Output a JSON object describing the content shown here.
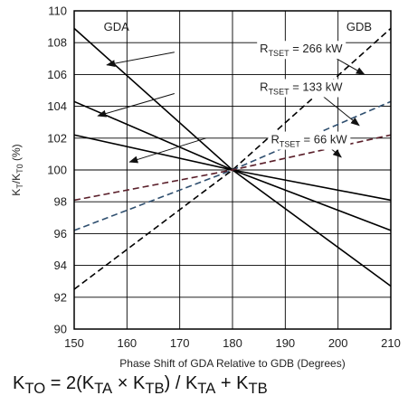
{
  "chart_data": {
    "type": "line",
    "xlabel": "Phase Shift of GDA Relative to GDB (Degrees)",
    "ylabel": "K_T/K_T0 (%)",
    "xlim": [
      150,
      210
    ],
    "ylim": [
      90,
      110
    ],
    "xticks": [
      150,
      160,
      170,
      180,
      190,
      200,
      210
    ],
    "yticks": [
      90,
      92,
      94,
      96,
      98,
      100,
      102,
      104,
      106,
      108,
      110
    ],
    "grid": true,
    "regions": [
      {
        "label": "GDA",
        "x": 158
      },
      {
        "label": "GDB",
        "x": 204
      }
    ],
    "series": [
      {
        "group": "GDA",
        "rtset": "266 kW",
        "style": "solid",
        "color": "#000000",
        "x": [
          150,
          180,
          210
        ],
        "y": [
          108.9,
          100,
          92.7
        ]
      },
      {
        "group": "GDA",
        "rtset": "133 kW",
        "style": "solid",
        "color": "#000000",
        "x": [
          150,
          180,
          210
        ],
        "y": [
          104.3,
          100,
          96.2
        ]
      },
      {
        "group": "GDA",
        "rtset": "66 kW",
        "style": "solid",
        "color": "#000000",
        "x": [
          150,
          180,
          210
        ],
        "y": [
          102.2,
          100,
          98.1
        ]
      },
      {
        "group": "GDB",
        "rtset": "266 kW",
        "style": "dashed",
        "color": "#000000",
        "x": [
          150,
          180,
          210
        ],
        "y": [
          92.5,
          100,
          108.9
        ]
      },
      {
        "group": "GDB",
        "rtset": "133 kW",
        "style": "dashed",
        "color": "#2f4f6f",
        "x": [
          150,
          180,
          210
        ],
        "y": [
          96.2,
          100,
          104.3
        ]
      },
      {
        "group": "GDB",
        "rtset": "66 kW",
        "style": "dashed",
        "color": "#5a1f2a",
        "x": [
          150,
          180,
          210
        ],
        "y": [
          98.1,
          100,
          102.2
        ]
      }
    ],
    "annotations": [
      {
        "main": "R",
        "sub": "TSET",
        "value": " = 266 kW",
        "label_at": [
          193,
          107.6
        ],
        "arrows": [
          {
            "from": [
              169,
              107.4
            ],
            "to": [
              156.2,
              106.6
            ]
          },
          {
            "from": [
              196.5,
              107.6
            ],
            "to": [
              205.0,
              106.0
            ]
          }
        ]
      },
      {
        "main": "R",
        "sub": "TSET",
        "value": " = 133 kW",
        "label_at": [
          193,
          105.2
        ],
        "arrows": [
          {
            "from": [
              169,
              104.8
            ],
            "to": [
              154.5,
              103.4
            ]
          },
          {
            "from": [
              196.5,
              104.8
            ],
            "to": [
              204.0,
              102.8
            ]
          }
        ]
      },
      {
        "main": "R",
        "sub": "TSET",
        "value": " = 66 kW",
        "label_at": [
          194.5,
          101.9
        ],
        "arrows": [
          {
            "from": [
              175,
              102.0
            ],
            "to": [
              160.5,
              100.5
            ]
          },
          {
            "from": [
              197,
              101.8
            ],
            "to": [
              200.6,
              100.8
            ]
          }
        ]
      }
    ]
  },
  "formula": {
    "k_to": "K",
    "k_to_sub": "TO",
    "eq": " = 2(",
    "k_ta": "K",
    "k_ta_sub": "TA",
    "times": " × ",
    "k_tb": "K",
    "k_tb_sub": "TB",
    "close": ") / ",
    "k_ta2": "K",
    "k_ta2_sub": "TA",
    "plus": " + ",
    "k_tb2": "K",
    "k_tb2_sub": "TB"
  }
}
